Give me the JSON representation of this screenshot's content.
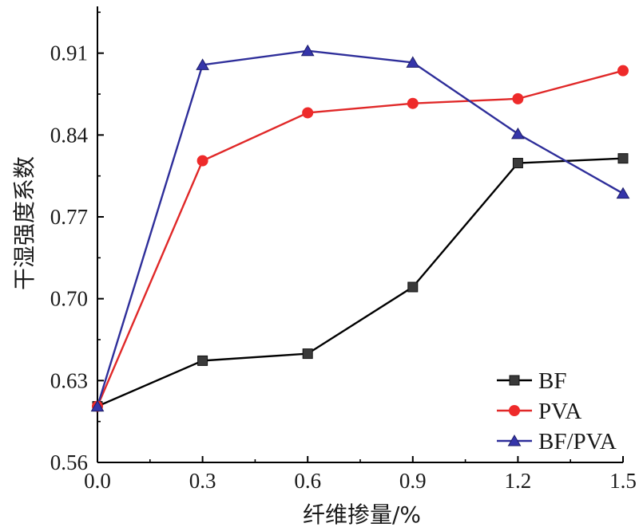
{
  "chart_data": {
    "type": "line",
    "x": [
      0.0,
      0.3,
      0.6,
      0.9,
      1.2,
      1.5
    ],
    "x_tick_labels": [
      "0.0",
      "0.3",
      "0.6",
      "0.9",
      "1.2",
      "1.5"
    ],
    "y_tick_values": [
      0.56,
      0.63,
      0.7,
      0.77,
      0.84,
      0.91
    ],
    "y_tick_labels": [
      "0.56",
      "0.63",
      "0.70",
      "0.77",
      "0.84",
      "0.91"
    ],
    "xlim": [
      0.0,
      1.5
    ],
    "ylim": [
      0.56,
      0.95
    ],
    "xlabel": "纤维掺量/%",
    "ylabel": "干湿强度系数",
    "grid": false,
    "legend_position": "bottom-right",
    "series": [
      {
        "name": "BF",
        "marker": "square",
        "line_color": "#000000",
        "marker_color": "#3a3a3a",
        "values": [
          0.608,
          0.647,
          0.653,
          0.71,
          0.816,
          0.82
        ]
      },
      {
        "name": "PVA",
        "marker": "circle",
        "line_color": "#e02828",
        "marker_color": "#ee2a2a",
        "values": [
          0.608,
          0.818,
          0.859,
          0.867,
          0.871,
          0.895
        ]
      },
      {
        "name": "BF/PVA",
        "marker": "triangle",
        "line_color": "#2e2e9a",
        "marker_color": "#3535aa",
        "values": [
          0.608,
          0.9,
          0.912,
          0.902,
          0.841,
          0.79
        ]
      }
    ]
  }
}
